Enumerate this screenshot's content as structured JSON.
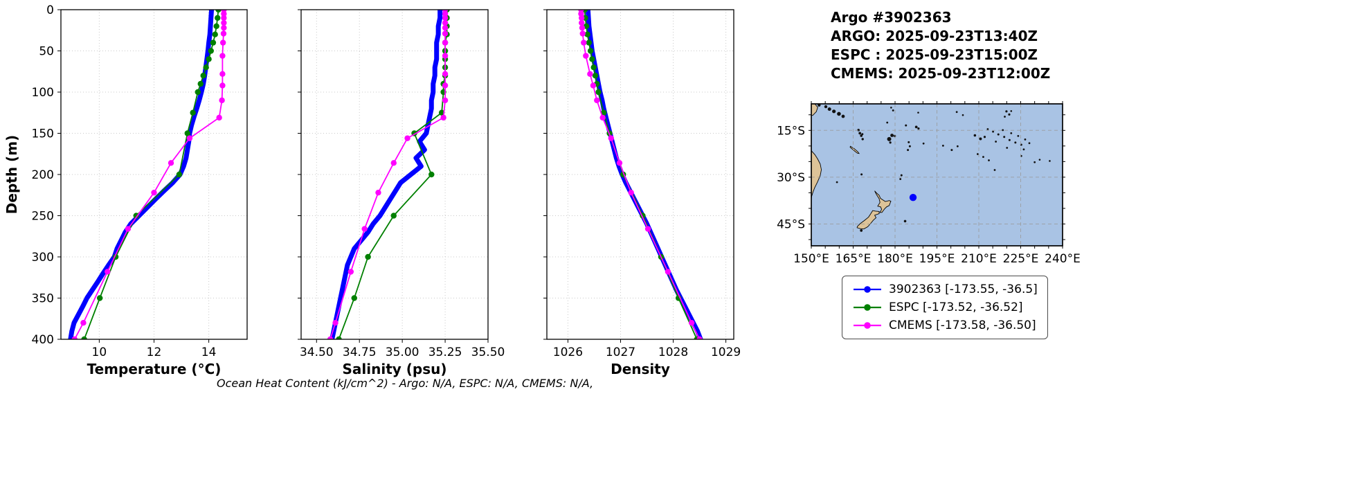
{
  "header": {
    "lines": [
      "Argo #3902363",
      "ARGO: 2025-09-23T13:40Z",
      "ESPC : 2025-09-23T15:00Z",
      "CMEMS: 2025-09-23T12:00Z"
    ]
  },
  "footer": {
    "text": "Ocean Heat Content (kJ/cm^2) - Argo: N/A,  ESPC: N/A,  CMEMS: N/A,"
  },
  "depths": {
    "argo": [
      0,
      10,
      20,
      30,
      40,
      50,
      60,
      70,
      80,
      90,
      100,
      110,
      120,
      130,
      140,
      150,
      160,
      170,
      180,
      190,
      200,
      210,
      220,
      230,
      240,
      250,
      260,
      270,
      280,
      290,
      300,
      310,
      320,
      330,
      340,
      350,
      360,
      370,
      380,
      390,
      400
    ],
    "espc": [
      0,
      10,
      20,
      30,
      40,
      50,
      60,
      70,
      80,
      90,
      100,
      125,
      150,
      200,
      250,
      300,
      350,
      400
    ],
    "cmems": [
      0,
      5,
      10,
      16,
      22,
      29,
      40,
      56,
      78,
      92,
      110,
      131,
      156,
      186,
      222,
      266,
      318,
      380,
      400
    ]
  },
  "chart_data": [
    {
      "type": "line",
      "name": "temperature",
      "xlabel": "Temperature (°C)",
      "ylabel": "Depth (m)",
      "xlim": [
        8.6,
        15.4
      ],
      "xticks": [
        {
          "value": 10,
          "label": "10"
        },
        {
          "value": 12,
          "label": "12"
        },
        {
          "value": 14,
          "label": "14"
        }
      ],
      "ylim": [
        0,
        400
      ],
      "y_inverted": true,
      "yticks": [
        0,
        50,
        100,
        150,
        200,
        250,
        300,
        350,
        400
      ],
      "grid": true,
      "series": [
        {
          "name": "3902363",
          "color": "#0000ff",
          "line_width": 7,
          "markers": false,
          "depth_key": "argo",
          "values": [
            14.1,
            14.08,
            14.06,
            14.04,
            14.0,
            13.97,
            13.93,
            13.89,
            13.85,
            13.8,
            13.73,
            13.65,
            13.56,
            13.46,
            13.37,
            13.3,
            13.27,
            13.22,
            13.17,
            13.08,
            12.95,
            12.68,
            12.36,
            12.05,
            11.75,
            11.45,
            11.15,
            10.95,
            10.8,
            10.65,
            10.55,
            10.34,
            10.14,
            9.95,
            9.75,
            9.55,
            9.4,
            9.24,
            9.08,
            9.0,
            8.95
          ]
        },
        {
          "name": "ESPC",
          "color": "#008000",
          "line_width": 1.8,
          "markers": true,
          "depth_key": "espc",
          "values": [
            14.35,
            14.32,
            14.28,
            14.23,
            14.16,
            14.08,
            14.0,
            13.9,
            13.8,
            13.7,
            13.6,
            13.42,
            13.22,
            12.92,
            11.35,
            10.6,
            10.02,
            9.45
          ]
        },
        {
          "name": "CMEMS",
          "color": "#ff00ff",
          "line_width": 1.8,
          "markers": true,
          "depth_key": "cmems",
          "values": [
            14.55,
            14.55,
            14.55,
            14.55,
            14.55,
            14.54,
            14.52,
            14.5,
            14.5,
            14.5,
            14.48,
            14.38,
            13.3,
            12.62,
            12.0,
            11.05,
            10.3,
            9.42,
            9.1
          ]
        }
      ]
    },
    {
      "type": "line",
      "name": "salinity",
      "xlabel": "Salinity (psu)",
      "ylabel": "",
      "xlim": [
        34.41,
        35.5
      ],
      "xticks": [
        {
          "value": 34.5,
          "label": "34.50"
        },
        {
          "value": 34.75,
          "label": "34.75"
        },
        {
          "value": 35.0,
          "label": "35.00"
        },
        {
          "value": 35.25,
          "label": "35.25"
        },
        {
          "value": 35.5,
          "label": "35.50"
        }
      ],
      "ylim": [
        0,
        400
      ],
      "y_inverted": true,
      "yticks": [
        0,
        50,
        100,
        150,
        200,
        250,
        300,
        350,
        400
      ],
      "grid": true,
      "series": [
        {
          "name": "3902363",
          "color": "#0000ff",
          "line_width": 7,
          "markers": false,
          "depth_key": "argo",
          "values": [
            35.22,
            35.22,
            35.21,
            35.21,
            35.2,
            35.2,
            35.2,
            35.19,
            35.19,
            35.18,
            35.18,
            35.17,
            35.17,
            35.16,
            35.15,
            35.14,
            35.1,
            35.13,
            35.08,
            35.11,
            35.05,
            34.99,
            34.96,
            34.93,
            34.9,
            34.87,
            34.83,
            34.8,
            34.76,
            34.72,
            34.7,
            34.68,
            34.67,
            34.66,
            34.65,
            34.64,
            34.63,
            34.62,
            34.61,
            34.6,
            34.59
          ]
        },
        {
          "name": "ESPC",
          "color": "#008000",
          "line_width": 1.8,
          "markers": true,
          "depth_key": "espc",
          "values": [
            35.26,
            35.26,
            35.26,
            35.26,
            35.25,
            35.25,
            35.25,
            35.25,
            35.25,
            35.24,
            35.24,
            35.23,
            35.07,
            35.17,
            34.95,
            34.8,
            34.72,
            34.63
          ]
        },
        {
          "name": "CMEMS",
          "color": "#ff00ff",
          "line_width": 1.8,
          "markers": true,
          "depth_key": "cmems",
          "values": [
            35.25,
            35.25,
            35.25,
            35.25,
            35.25,
            35.25,
            35.25,
            35.25,
            35.25,
            35.25,
            35.25,
            35.24,
            35.03,
            34.95,
            34.86,
            34.78,
            34.7,
            34.61,
            34.58
          ]
        }
      ]
    },
    {
      "type": "line",
      "name": "density",
      "xlabel": "Density",
      "ylabel": "",
      "xlim": [
        1025.6,
        1029.15
      ],
      "xticks": [
        {
          "value": 1026,
          "label": "1026"
        },
        {
          "value": 1027,
          "label": "1027"
        },
        {
          "value": 1028,
          "label": "1028"
        },
        {
          "value": 1029,
          "label": "1029"
        }
      ],
      "ylim": [
        0,
        400
      ],
      "y_inverted": true,
      "yticks": [
        0,
        50,
        100,
        150,
        200,
        250,
        300,
        350,
        400
      ],
      "grid": true,
      "series": [
        {
          "name": "3902363",
          "color": "#0000ff",
          "line_width": 7,
          "markers": false,
          "depth_key": "argo",
          "values": [
            1026.38,
            1026.39,
            1026.4,
            1026.42,
            1026.44,
            1026.46,
            1026.49,
            1026.52,
            1026.55,
            1026.58,
            1026.61,
            1026.65,
            1026.68,
            1026.72,
            1026.76,
            1026.8,
            1026.84,
            1026.88,
            1026.92,
            1026.97,
            1027.03,
            1027.1,
            1027.18,
            1027.26,
            1027.34,
            1027.42,
            1027.5,
            1027.57,
            1027.64,
            1027.71,
            1027.78,
            1027.85,
            1027.92,
            1027.99,
            1028.06,
            1028.14,
            1028.22,
            1028.3,
            1028.38,
            1028.46,
            1028.52
          ]
        },
        {
          "name": "ESPC",
          "color": "#008000",
          "line_width": 1.8,
          "markers": true,
          "depth_key": "espc",
          "values": [
            1026.32,
            1026.33,
            1026.35,
            1026.37,
            1026.4,
            1026.43,
            1026.46,
            1026.49,
            1026.52,
            1026.55,
            1026.58,
            1026.68,
            1026.79,
            1027.05,
            1027.42,
            1027.77,
            1028.1,
            1028.45
          ]
        },
        {
          "name": "CMEMS",
          "color": "#ff00ff",
          "line_width": 1.8,
          "markers": true,
          "depth_key": "cmems",
          "values": [
            1026.25,
            1026.25,
            1026.26,
            1026.26,
            1026.27,
            1026.28,
            1026.3,
            1026.34,
            1026.42,
            1026.48,
            1026.55,
            1026.66,
            1026.82,
            1026.98,
            1027.2,
            1027.52,
            1027.9,
            1028.35,
            1028.5
          ]
        }
      ]
    }
  ],
  "map": {
    "extent": {
      "lon_min": 150,
      "lon_max": 240,
      "lat_min": -52,
      "lat_max": -6.5
    },
    "lon_ticks": [
      {
        "value": 150,
        "label": "150°E"
      },
      {
        "value": 165,
        "label": "165°E"
      },
      {
        "value": 180,
        "label": "180°E"
      },
      {
        "value": 195,
        "label": "195°E"
      },
      {
        "value": 210,
        "label": "210°E"
      },
      {
        "value": 225,
        "label": "225°E"
      },
      {
        "value": 240,
        "label": "240°E"
      }
    ],
    "lat_ticks": [
      {
        "value": -15,
        "label": "15°S"
      },
      {
        "value": -30,
        "label": "30°S"
      },
      {
        "value": -45,
        "label": "45°S"
      }
    ],
    "marker": {
      "lon": 186.45,
      "lat": -36.5,
      "color": "#0000ff"
    },
    "colors": {
      "ocean": "#a9c3e4",
      "land": "#ddc398",
      "coast": "#000000",
      "grid": "#9a9a9a"
    }
  },
  "legend": {
    "items": [
      {
        "label": "3902363 [-173.55, -36.5]",
        "color": "#0000ff"
      },
      {
        "label": "ESPC [-173.52, -36.52]",
        "color": "#008000"
      },
      {
        "label": "CMEMS [-173.58, -36.50]",
        "color": "#ff00ff"
      }
    ]
  }
}
